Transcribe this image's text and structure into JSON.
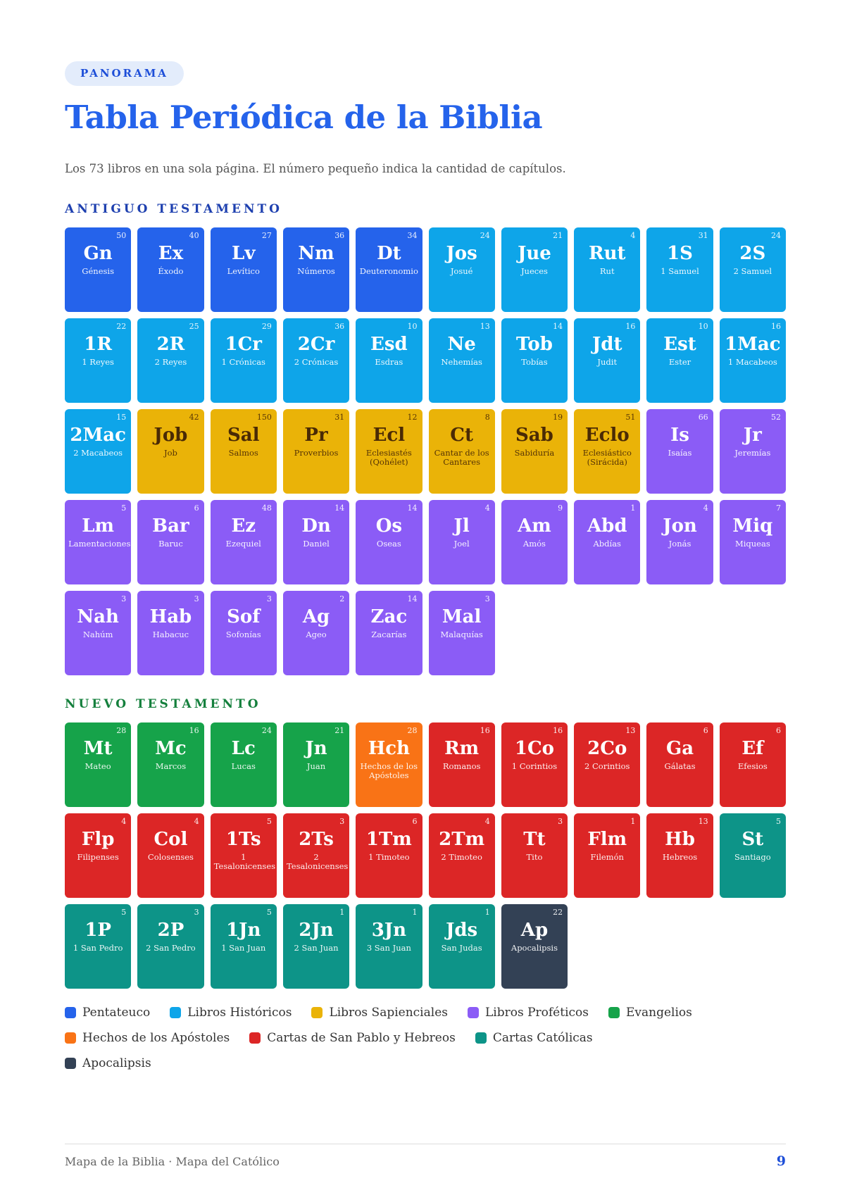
{
  "header": {
    "badge": "PANORAMA",
    "title": "Tabla Periódica de la Biblia",
    "subtitle": "Los 73 libros en una sola página. El número pequeño indica la cantidad de capítulos."
  },
  "old_testament": {
    "heading": "ANTIGUO TESTAMENTO",
    "heading_color": "#1e40af",
    "books": [
      {
        "abbr": "Gn",
        "name": "Génesis",
        "chapters": 50,
        "color": "#2563eb"
      },
      {
        "abbr": "Ex",
        "name": "Éxodo",
        "chapters": 40,
        "color": "#2563eb"
      },
      {
        "abbr": "Lv",
        "name": "Levítico",
        "chapters": 27,
        "color": "#2563eb"
      },
      {
        "abbr": "Nm",
        "name": "Números",
        "chapters": 36,
        "color": "#2563eb"
      },
      {
        "abbr": "Dt",
        "name": "Deuteronomio",
        "chapters": 34,
        "color": "#2563eb"
      },
      {
        "abbr": "Jos",
        "name": "Josué",
        "chapters": 24,
        "color": "#0ea5e9"
      },
      {
        "abbr": "Jue",
        "name": "Jueces",
        "chapters": 21,
        "color": "#0ea5e9"
      },
      {
        "abbr": "Rut",
        "name": "Rut",
        "chapters": 4,
        "color": "#0ea5e9"
      },
      {
        "abbr": "1S",
        "name": "1 Samuel",
        "chapters": 31,
        "color": "#0ea5e9"
      },
      {
        "abbr": "2S",
        "name": "2 Samuel",
        "chapters": 24,
        "color": "#0ea5e9"
      },
      {
        "abbr": "1R",
        "name": "1 Reyes",
        "chapters": 22,
        "color": "#0ea5e9"
      },
      {
        "abbr": "2R",
        "name": "2 Reyes",
        "chapters": 25,
        "color": "#0ea5e9"
      },
      {
        "abbr": "1Cr",
        "name": "1 Crónicas",
        "chapters": 29,
        "color": "#0ea5e9"
      },
      {
        "abbr": "2Cr",
        "name": "2 Crónicas",
        "chapters": 36,
        "color": "#0ea5e9"
      },
      {
        "abbr": "Esd",
        "name": "Esdras",
        "chapters": 10,
        "color": "#0ea5e9"
      },
      {
        "abbr": "Ne",
        "name": "Nehemías",
        "chapters": 13,
        "color": "#0ea5e9"
      },
      {
        "abbr": "Tob",
        "name": "Tobías",
        "chapters": 14,
        "color": "#0ea5e9"
      },
      {
        "abbr": "Jdt",
        "name": "Judit",
        "chapters": 16,
        "color": "#0ea5e9"
      },
      {
        "abbr": "Est",
        "name": "Ester",
        "chapters": 10,
        "color": "#0ea5e9"
      },
      {
        "abbr": "1Mac",
        "name": "1 Macabeos",
        "chapters": 16,
        "color": "#0ea5e9"
      },
      {
        "abbr": "2Mac",
        "name": "2 Macabeos",
        "chapters": 15,
        "color": "#0ea5e9"
      },
      {
        "abbr": "Job",
        "name": "Job",
        "chapters": 42,
        "color": "#eab308"
      },
      {
        "abbr": "Sal",
        "name": "Salmos",
        "chapters": 150,
        "color": "#eab308"
      },
      {
        "abbr": "Pr",
        "name": "Proverbios",
        "chapters": 31,
        "color": "#eab308"
      },
      {
        "abbr": "Ecl",
        "name": "Eclesiastés (Qohélet)",
        "chapters": 12,
        "color": "#eab308"
      },
      {
        "abbr": "Ct",
        "name": "Cantar de los Cantares",
        "chapters": 8,
        "color": "#eab308"
      },
      {
        "abbr": "Sab",
        "name": "Sabiduría",
        "chapters": 19,
        "color": "#eab308"
      },
      {
        "abbr": "Eclo",
        "name": "Eclesiástico (Sirácida)",
        "chapters": 51,
        "color": "#eab308"
      },
      {
        "abbr": "Is",
        "name": "Isaías",
        "chapters": 66,
        "color": "#8b5cf6"
      },
      {
        "abbr": "Jr",
        "name": "Jeremías",
        "chapters": 52,
        "color": "#8b5cf6"
      },
      {
        "abbr": "Lm",
        "name": "Lamentaciones",
        "chapters": 5,
        "color": "#8b5cf6"
      },
      {
        "abbr": "Bar",
        "name": "Baruc",
        "chapters": 6,
        "color": "#8b5cf6"
      },
      {
        "abbr": "Ez",
        "name": "Ezequiel",
        "chapters": 48,
        "color": "#8b5cf6"
      },
      {
        "abbr": "Dn",
        "name": "Daniel",
        "chapters": 14,
        "color": "#8b5cf6"
      },
      {
        "abbr": "Os",
        "name": "Oseas",
        "chapters": 14,
        "color": "#8b5cf6"
      },
      {
        "abbr": "Jl",
        "name": "Joel",
        "chapters": 4,
        "color": "#8b5cf6"
      },
      {
        "abbr": "Am",
        "name": "Amós",
        "chapters": 9,
        "color": "#8b5cf6"
      },
      {
        "abbr": "Abd",
        "name": "Abdías",
        "chapters": 1,
        "color": "#8b5cf6"
      },
      {
        "abbr": "Jon",
        "name": "Jonás",
        "chapters": 4,
        "color": "#8b5cf6"
      },
      {
        "abbr": "Miq",
        "name": "Miqueas",
        "chapters": 7,
        "color": "#8b5cf6"
      },
      {
        "abbr": "Nah",
        "name": "Nahúm",
        "chapters": 3,
        "color": "#8b5cf6"
      },
      {
        "abbr": "Hab",
        "name": "Habacuc",
        "chapters": 3,
        "color": "#8b5cf6"
      },
      {
        "abbr": "Sof",
        "name": "Sofonías",
        "chapters": 3,
        "color": "#8b5cf6"
      },
      {
        "abbr": "Ag",
        "name": "Ageo",
        "chapters": 2,
        "color": "#8b5cf6"
      },
      {
        "abbr": "Zac",
        "name": "Zacarías",
        "chapters": 14,
        "color": "#8b5cf6"
      },
      {
        "abbr": "Mal",
        "name": "Malaquías",
        "chapters": 3,
        "color": "#8b5cf6"
      }
    ]
  },
  "new_testament": {
    "heading": "NUEVO TESTAMENTO",
    "heading_color": "#15803d",
    "books": [
      {
        "abbr": "Mt",
        "name": "Mateo",
        "chapters": 28,
        "color": "#16a34a"
      },
      {
        "abbr": "Mc",
        "name": "Marcos",
        "chapters": 16,
        "color": "#16a34a"
      },
      {
        "abbr": "Lc",
        "name": "Lucas",
        "chapters": 24,
        "color": "#16a34a"
      },
      {
        "abbr": "Jn",
        "name": "Juan",
        "chapters": 21,
        "color": "#16a34a"
      },
      {
        "abbr": "Hch",
        "name": "Hechos de los Apóstoles",
        "chapters": 28,
        "color": "#f97316"
      },
      {
        "abbr": "Rm",
        "name": "Romanos",
        "chapters": 16,
        "color": "#dc2626"
      },
      {
        "abbr": "1Co",
        "name": "1 Corintios",
        "chapters": 16,
        "color": "#dc2626"
      },
      {
        "abbr": "2Co",
        "name": "2 Corintios",
        "chapters": 13,
        "color": "#dc2626"
      },
      {
        "abbr": "Ga",
        "name": "Gálatas",
        "chapters": 6,
        "color": "#dc2626"
      },
      {
        "abbr": "Ef",
        "name": "Efesios",
        "chapters": 6,
        "color": "#dc2626"
      },
      {
        "abbr": "Flp",
        "name": "Filipenses",
        "chapters": 4,
        "color": "#dc2626"
      },
      {
        "abbr": "Col",
        "name": "Colosenses",
        "chapters": 4,
        "color": "#dc2626"
      },
      {
        "abbr": "1Ts",
        "name": "1 Tesalonicenses",
        "chapters": 5,
        "color": "#dc2626"
      },
      {
        "abbr": "2Ts",
        "name": "2 Tesalonicenses",
        "chapters": 3,
        "color": "#dc2626"
      },
      {
        "abbr": "1Tm",
        "name": "1 Timoteo",
        "chapters": 6,
        "color": "#dc2626"
      },
      {
        "abbr": "2Tm",
        "name": "2 Timoteo",
        "chapters": 4,
        "color": "#dc2626"
      },
      {
        "abbr": "Tt",
        "name": "Tito",
        "chapters": 3,
        "color": "#dc2626"
      },
      {
        "abbr": "Flm",
        "name": "Filemón",
        "chapters": 1,
        "color": "#dc2626"
      },
      {
        "abbr": "Hb",
        "name": "Hebreos",
        "chapters": 13,
        "color": "#dc2626"
      },
      {
        "abbr": "St",
        "name": "Santiago",
        "chapters": 5,
        "color": "#0d9488"
      },
      {
        "abbr": "1P",
        "name": "1 San Pedro",
        "chapters": 5,
        "color": "#0d9488"
      },
      {
        "abbr": "2P",
        "name": "2 San Pedro",
        "chapters": 3,
        "color": "#0d9488"
      },
      {
        "abbr": "1Jn",
        "name": "1 San Juan",
        "chapters": 5,
        "color": "#0d9488"
      },
      {
        "abbr": "2Jn",
        "name": "2 San Juan",
        "chapters": 1,
        "color": "#0d9488"
      },
      {
        "abbr": "3Jn",
        "name": "3 San Juan",
        "chapters": 1,
        "color": "#0d9488"
      },
      {
        "abbr": "Jds",
        "name": "San Judas",
        "chapters": 1,
        "color": "#0d9488"
      },
      {
        "abbr": "Ap",
        "name": "Apocalipsis",
        "chapters": 22,
        "color": "#334155"
      }
    ]
  },
  "legend": [
    {
      "label": "Pentateuco",
      "color": "#2563eb"
    },
    {
      "label": "Libros Históricos",
      "color": "#0ea5e9"
    },
    {
      "label": "Libros Sapienciales",
      "color": "#eab308"
    },
    {
      "label": "Libros Proféticos",
      "color": "#8b5cf6"
    },
    {
      "label": "Evangelios",
      "color": "#16a34a"
    },
    {
      "label": "Hechos de los Apóstoles",
      "color": "#f97316"
    },
    {
      "label": "Cartas de San Pablo y Hebreos",
      "color": "#dc2626"
    },
    {
      "label": "Cartas Católicas",
      "color": "#0d9488"
    },
    {
      "label": "Apocalipsis",
      "color": "#334155"
    }
  ],
  "footer": {
    "left": "Mapa de la Biblia · Mapa del Católico",
    "page": "9"
  }
}
